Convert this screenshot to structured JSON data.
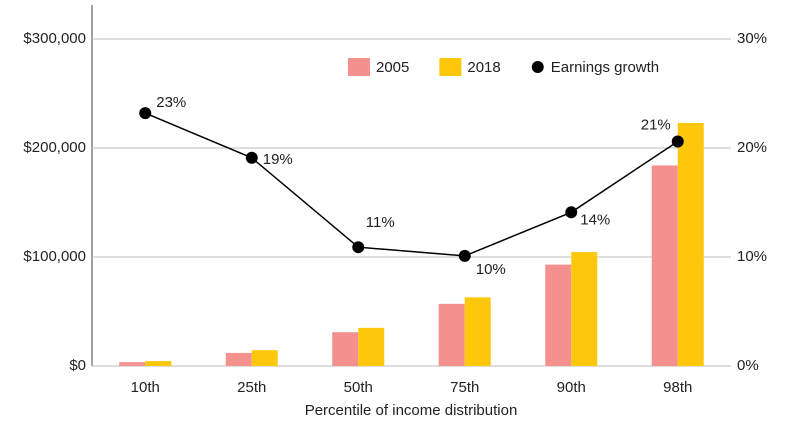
{
  "chart_data": {
    "type": "bar-line",
    "x_label": "Percentile of income distribution",
    "categories": [
      "10th",
      "25th",
      "50th",
      "75th",
      "90th",
      "98th"
    ],
    "series": [
      {
        "name": "2005",
        "color": "#f4908e",
        "type": "bar",
        "values": [
          3500,
          12000,
          31000,
          57000,
          93000,
          184000
        ]
      },
      {
        "name": "2018",
        "color": "#fdc70c",
        "type": "bar",
        "values": [
          4500,
          14500,
          35000,
          63000,
          104500,
          223000
        ]
      },
      {
        "name": "Earnings growth",
        "color": "#000000",
        "type": "line",
        "axis": "y2",
        "values": [
          23.2,
          19.1,
          10.9,
          10.1,
          14.1,
          20.6
        ],
        "value_labels": [
          "23%",
          "19%",
          "11%",
          "10%",
          "14%",
          "21%"
        ]
      }
    ],
    "ylim": [
      0,
      300000
    ],
    "yticks": [
      {
        "value": 0,
        "label": "$0"
      },
      {
        "value": 100000,
        "label": "$100,000"
      },
      {
        "value": 200000,
        "label": "$200,000"
      },
      {
        "value": 300000,
        "label": "$300,000"
      }
    ],
    "y2lim": [
      0,
      30
    ],
    "y2ticks": [
      {
        "value": 0,
        "label": "0%"
      },
      {
        "value": 10,
        "label": "10%"
      },
      {
        "value": 20,
        "label": "20%"
      },
      {
        "value": 30,
        "label": "30%"
      }
    ],
    "grid": true
  }
}
